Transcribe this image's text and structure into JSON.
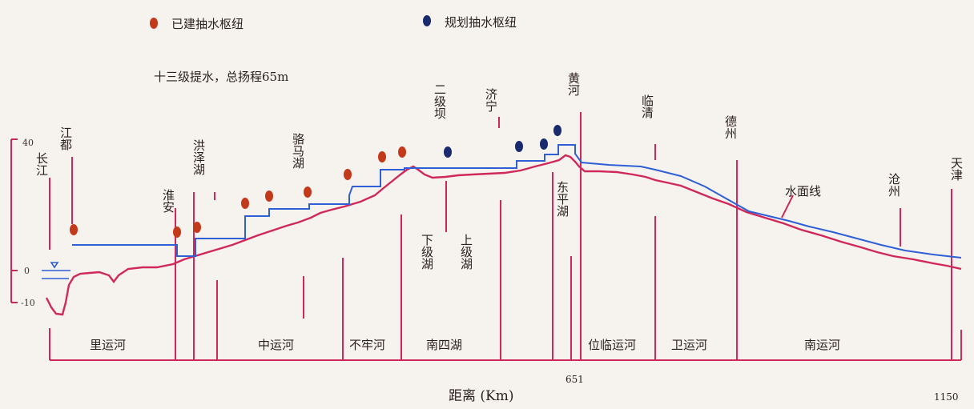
{
  "legend": {
    "built_label": "已建抽水枢纽",
    "planned_label": "规划抽水枢纽",
    "built_color": "#c4391a",
    "planned_color": "#1a2a6e"
  },
  "caption": "十三级提水，总扬程65m",
  "y_axis": {
    "ticks": [
      "40",
      "0",
      "-10"
    ]
  },
  "x_axis": {
    "title": "距离 (Km)",
    "marks": [
      "651",
      "1150"
    ]
  },
  "water_line_label": "水面线",
  "places": [
    "长江",
    "江都",
    "淮安",
    "洪泽湖",
    "骆马湖",
    "二级坝",
    "济宁",
    "下级湖",
    "上级湖",
    "黄河",
    "东平湖",
    "临清",
    "德州",
    "沧州",
    "天津"
  ],
  "sections": [
    "里运河",
    "中运河",
    "不牢河",
    "南四湖",
    "位临运河",
    "卫运河",
    "南运河"
  ],
  "colors": {
    "ground": "#d0285a",
    "water": "#2e5fd6",
    "text": "#2a1f1f"
  }
}
